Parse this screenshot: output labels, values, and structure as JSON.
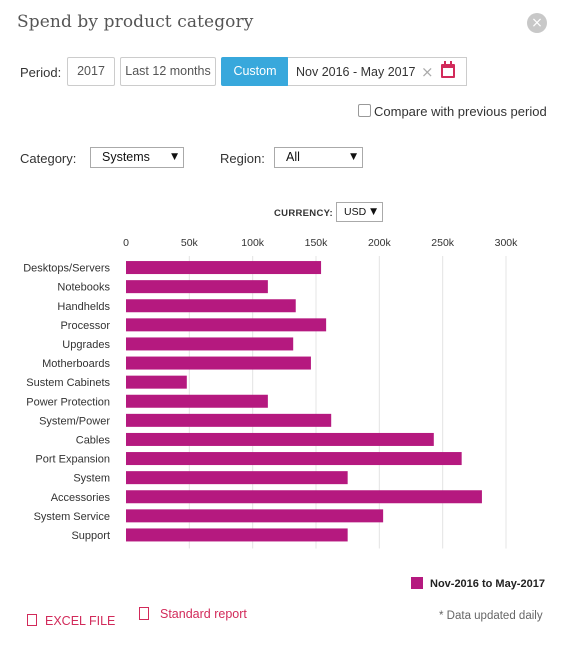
{
  "dialog": {
    "title": "Spend by product category",
    "close_symbol": "×"
  },
  "period": {
    "label": "Period:",
    "options": [
      "2017",
      "Last 12 months",
      "Custom"
    ],
    "selected": "Custom",
    "date_range": "Nov 2016 - May 2017",
    "clear_symbol": "×"
  },
  "compare": {
    "label": "Compare with previous period",
    "checked": false
  },
  "filters": {
    "category_label": "Category:",
    "category_value": "Systems",
    "region_label": "Region:",
    "region_value": "All"
  },
  "currency": {
    "label": "CURRENCY:",
    "value": "USD"
  },
  "chart_data": {
    "type": "bar",
    "orientation": "horizontal",
    "categories": [
      "Desktops/Servers",
      "Notebooks",
      "Handhelds",
      "Processor",
      "Upgrades",
      "Motherboards",
      "Sustem Cabinets",
      "Power Protection",
      "System/Power",
      "Cables",
      "Port Expansion",
      "System",
      "Accessories",
      "System Service",
      "Support"
    ],
    "series": [
      {
        "name": "Nov-2016 to May-2017",
        "color": "#b5197f",
        "values": [
          154000,
          112000,
          134000,
          158000,
          132000,
          146000,
          48000,
          112000,
          162000,
          243000,
          265000,
          175000,
          281000,
          203000,
          175000
        ]
      }
    ],
    "xlim": [
      0,
      300000
    ],
    "xticks": [
      0,
      50000,
      100000,
      150000,
      200000,
      250000,
      300000
    ],
    "xtick_labels": [
      "0",
      "50k",
      "100k",
      "150k",
      "200k",
      "250k",
      "300k"
    ],
    "grid": "vertical",
    "legend_position": "bottom-right"
  },
  "legend": {
    "label": "Nov-2016 to May-2017"
  },
  "footer": {
    "excel_label": "EXCEL FILE",
    "report_label": "Standard report",
    "note": "* Data updated daily"
  },
  "colors": {
    "accent": "#38a8dc",
    "bar": "#b5197f",
    "link": "#d22a5a"
  },
  "icons": {
    "close": "close-icon",
    "calendar": "calendar-icon",
    "excel": "excel-file-icon",
    "report": "document-icon"
  }
}
